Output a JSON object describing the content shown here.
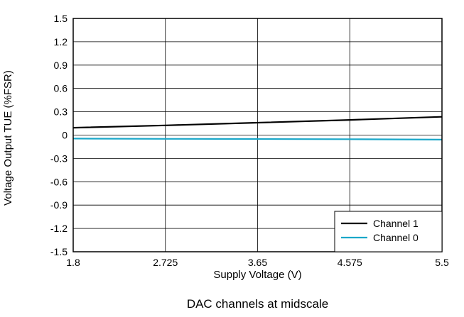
{
  "chart_data": {
    "type": "line",
    "title": "",
    "caption": "DAC channels at midscale",
    "xlabel": "Supply Voltage (V)",
    "ylabel": "Voltage Output TUE (%FSR)",
    "xlim": [
      1.8,
      5.5
    ],
    "ylim": [
      -1.5,
      1.5
    ],
    "xticks": [
      1.8,
      2.725,
      3.65,
      4.575,
      5.5
    ],
    "xtick_labels": [
      "1.8",
      "2.725",
      "3.65",
      "4.575",
      "5.5"
    ],
    "yticks": [
      1.5,
      1.2,
      0.9,
      0.6,
      0.3,
      0,
      -0.3,
      -0.6,
      -0.9,
      -1.2,
      -1.5
    ],
    "ytick_labels": [
      "1.5",
      "1.2",
      "0.9",
      "0.6",
      "0.3",
      "0",
      "-0.3",
      "-0.6",
      "-0.9",
      "-1.2",
      "-1.5"
    ],
    "grid": true,
    "legend_position": "bottom-right",
    "series": [
      {
        "name": "Channel 1",
        "color": "#000000",
        "x": [
          1.8,
          2.725,
          3.65,
          4.575,
          5.5
        ],
        "y": [
          0.095,
          0.125,
          0.16,
          0.195,
          0.235
        ]
      },
      {
        "name": "Channel 0",
        "color": "#1aa7c9",
        "x": [
          1.8,
          2.725,
          3.65,
          4.575,
          5.5
        ],
        "y": [
          -0.045,
          -0.048,
          -0.05,
          -0.053,
          -0.058
        ]
      }
    ]
  }
}
